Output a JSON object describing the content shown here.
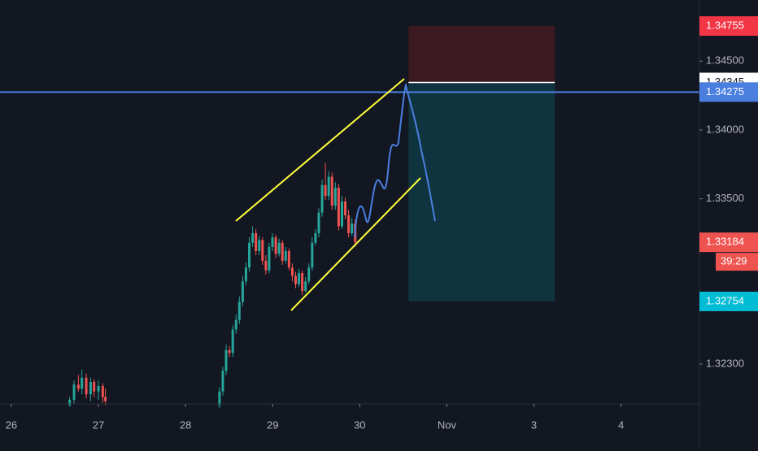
{
  "chart_data": {
    "type": "candlestick",
    "x": [
      0.67,
      0.72,
      0.77,
      0.81,
      0.86,
      0.91,
      0.95,
      1.0,
      1.05,
      1.08,
      2.39,
      2.428,
      2.466,
      2.504,
      2.542,
      2.58,
      2.618,
      2.656,
      2.694,
      2.732,
      2.77,
      2.808,
      2.846,
      2.884,
      2.922,
      2.96,
      2.998,
      3.036,
      3.074,
      3.112,
      3.15,
      3.188,
      3.226,
      3.264,
      3.302,
      3.34,
      3.378,
      3.416,
      3.454,
      3.492,
      3.53,
      3.568,
      3.606,
      3.644,
      3.682,
      3.72,
      3.758,
      3.796,
      3.834,
      3.872,
      3.91,
      3.948
    ],
    "open": [
      1.32,
      1.3204,
      1.3215,
      1.3212,
      1.322,
      1.3208,
      1.3217,
      1.321,
      1.3214,
      1.3206,
      1.32,
      1.321,
      1.3225,
      1.324,
      1.3238,
      1.3255,
      1.3262,
      1.3275,
      1.329,
      1.33,
      1.3318,
      1.3325,
      1.3312,
      1.332,
      1.3305,
      1.3298,
      1.3315,
      1.3322,
      1.331,
      1.3318,
      1.3305,
      1.3312,
      1.33,
      1.3294,
      1.3288,
      1.3296,
      1.3283,
      1.329,
      1.33,
      1.3318,
      1.3325,
      1.334,
      1.336,
      1.3352,
      1.3366,
      1.3345,
      1.3358,
      1.333,
      1.3348,
      1.3338,
      1.3325,
      1.3332
    ],
    "high": [
      1.3206,
      1.3218,
      1.3222,
      1.3226,
      1.3223,
      1.322,
      1.3219,
      1.3218,
      1.3216,
      1.3212,
      1.3213,
      1.3228,
      1.3244,
      1.3243,
      1.3258,
      1.3266,
      1.3279,
      1.3294,
      1.3304,
      1.3322,
      1.333,
      1.3328,
      1.3323,
      1.3322,
      1.3309,
      1.3318,
      1.3325,
      1.3324,
      1.3321,
      1.332,
      1.3315,
      1.3314,
      1.3303,
      1.3297,
      1.3299,
      1.3298,
      1.3293,
      1.3303,
      1.3322,
      1.3328,
      1.3343,
      1.3364,
      1.3376,
      1.337,
      1.3369,
      1.3362,
      1.3361,
      1.3352,
      1.3351,
      1.3342,
      1.3336,
      1.3335
    ],
    "low": [
      1.3199,
      1.3201,
      1.321,
      1.3208,
      1.3205,
      1.3203,
      1.3206,
      1.3204,
      1.3202,
      1.32,
      1.3198,
      1.3207,
      1.3222,
      1.3235,
      1.3235,
      1.3252,
      1.3259,
      1.3272,
      1.3287,
      1.3297,
      1.3315,
      1.3309,
      1.3309,
      1.3302,
      1.3295,
      1.3296,
      1.3312,
      1.3307,
      1.3308,
      1.3302,
      1.3303,
      1.3298,
      1.329,
      1.3285,
      1.3286,
      1.328,
      1.3282,
      1.3288,
      1.3298,
      1.3316,
      1.3322,
      1.3337,
      1.3349,
      1.3349,
      1.3342,
      1.3342,
      1.3327,
      1.3328,
      1.3335,
      1.3322,
      1.3323,
      1.3315
    ],
    "close": [
      1.3204,
      1.3215,
      1.3212,
      1.322,
      1.3208,
      1.3217,
      1.321,
      1.3214,
      1.3206,
      1.3203,
      1.321,
      1.3225,
      1.324,
      1.3238,
      1.3255,
      1.3262,
      1.3275,
      1.329,
      1.33,
      1.3318,
      1.3325,
      1.3312,
      1.332,
      1.3305,
      1.3298,
      1.3315,
      1.3322,
      1.331,
      1.3318,
      1.3305,
      1.3312,
      1.33,
      1.3294,
      1.3288,
      1.3296,
      1.3283,
      1.329,
      1.33,
      1.3318,
      1.3325,
      1.334,
      1.336,
      1.3352,
      1.3366,
      1.3345,
      1.3358,
      1.333,
      1.3348,
      1.3338,
      1.3325,
      1.3332,
      1.33184
    ],
    "up_color": "#26a69a",
    "down_color": "#ef5350",
    "xlim": [
      -0.13,
      7.9
    ],
    "xticks": [
      {
        "value": 0,
        "label": "26"
      },
      {
        "value": 1,
        "label": "27"
      },
      {
        "value": 2,
        "label": "28"
      },
      {
        "value": 3,
        "label": "29"
      },
      {
        "value": 4,
        "label": "30"
      },
      {
        "value": 5,
        "label": "Nov"
      },
      {
        "value": 6,
        "label": "3"
      },
      {
        "value": 7,
        "label": "4"
      }
    ],
    "ylim": [
      1.3201,
      1.34944
    ],
    "yticks": [
      {
        "value": 1.345,
        "label": "1.34500"
      },
      {
        "value": 1.34,
        "label": "1.34000"
      },
      {
        "value": 1.335,
        "label": "1.33500"
      },
      {
        "value": 1.323,
        "label": "1.32300"
      }
    ],
    "horizontal_line": {
      "value": 1.34275,
      "color": "#4a7fe0"
    },
    "position": {
      "x": [
        4.56,
        6.24
      ],
      "stop": 1.34755,
      "entry": 1.34345,
      "target": 1.32754
    },
    "price_labels": [
      {
        "value": 1.34755,
        "label": "1.34755",
        "color": "#f23645"
      },
      {
        "value": 1.34345,
        "label": "1.34345",
        "color": "#ffffff"
      },
      {
        "value": 1.34275,
        "label": "1.34275",
        "color": "#4a7fe0"
      },
      {
        "value": 1.33184,
        "label": "1.33184",
        "color": "#ef5350"
      },
      {
        "value": 1.32754,
        "label": "1.32754",
        "color": "#00bcd4"
      }
    ],
    "countdown": "39:29"
  }
}
